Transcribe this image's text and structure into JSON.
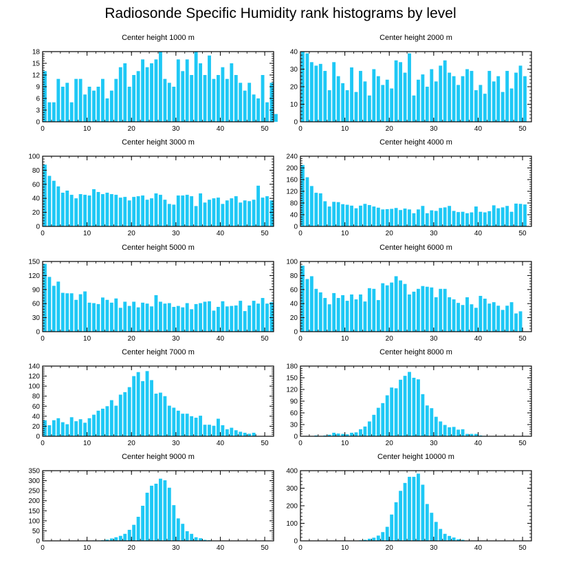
{
  "title": "Radiosonde Specific Humidity rank histograms by level",
  "bar_color": "#1ec8f5",
  "chart_data": [
    {
      "type": "bar",
      "title": "Center height 1000 m",
      "xlim": [
        0,
        52
      ],
      "ylim": [
        0,
        18
      ],
      "xticks": [
        0,
        10,
        20,
        30,
        40,
        50
      ],
      "yticks": [
        0,
        3,
        6,
        9,
        12,
        15,
        18
      ],
      "values": [
        13,
        5,
        5,
        11,
        9,
        10,
        5,
        11,
        11,
        7,
        9,
        8,
        9,
        11,
        6,
        8,
        11,
        14,
        15,
        9,
        12,
        13,
        16,
        14,
        15,
        16,
        18,
        11,
        10,
        9,
        16,
        13,
        16,
        12,
        18,
        15,
        12,
        17,
        11,
        12,
        14,
        11,
        15,
        12,
        10,
        8,
        10,
        7,
        6,
        12,
        5,
        10,
        2
      ]
    },
    {
      "type": "bar",
      "title": "Center height 2000 m",
      "xlim": [
        0,
        52
      ],
      "ylim": [
        0,
        40
      ],
      "xticks": [
        0,
        10,
        20,
        30,
        40,
        50
      ],
      "yticks": [
        0,
        10,
        20,
        30,
        40
      ],
      "values": [
        40,
        39,
        34,
        32,
        33,
        29,
        18,
        34,
        26,
        22,
        18,
        31,
        17,
        29,
        23,
        15,
        30,
        26,
        21,
        24,
        19,
        35,
        34,
        28,
        39,
        15,
        24,
        27,
        20,
        30,
        23,
        32,
        35,
        28,
        26,
        21,
        26,
        30,
        29,
        18,
        21,
        16,
        29,
        23,
        26,
        17,
        29,
        19,
        28,
        32,
        26
      ]
    },
    {
      "type": "bar",
      "title": "Center height 3000 m",
      "xlim": [
        0,
        52
      ],
      "ylim": [
        0,
        100
      ],
      "xticks": [
        0,
        10,
        20,
        30,
        40,
        50
      ],
      "yticks": [
        0,
        20,
        40,
        60,
        80,
        100
      ],
      "values": [
        88,
        72,
        65,
        57,
        48,
        51,
        45,
        40,
        46,
        45,
        44,
        53,
        49,
        46,
        48,
        46,
        45,
        41,
        42,
        37,
        42,
        43,
        44,
        38,
        40,
        47,
        45,
        38,
        32,
        31,
        44,
        44,
        45,
        43,
        29,
        47,
        34,
        38,
        40,
        41,
        32,
        37,
        40,
        43,
        34,
        37,
        36,
        38,
        58,
        41,
        43,
        37
      ]
    },
    {
      "type": "bar",
      "title": "Center height 4000 m",
      "xlim": [
        0,
        52
      ],
      "ylim": [
        0,
        240
      ],
      "xticks": [
        0,
        10,
        20,
        30,
        40,
        50
      ],
      "yticks": [
        0,
        40,
        80,
        120,
        160,
        200,
        240
      ],
      "values": [
        210,
        168,
        138,
        115,
        113,
        86,
        68,
        84,
        83,
        76,
        74,
        71,
        62,
        71,
        77,
        73,
        68,
        64,
        58,
        59,
        60,
        63,
        56,
        61,
        58,
        45,
        58,
        70,
        45,
        55,
        53,
        63,
        65,
        70,
        53,
        49,
        50,
        45,
        48,
        68,
        50,
        48,
        52,
        72,
        62,
        65,
        70,
        50,
        78,
        77,
        75
      ]
    },
    {
      "type": "bar",
      "title": "Center height 5000 m",
      "xlim": [
        0,
        52
      ],
      "ylim": [
        0,
        150
      ],
      "xticks": [
        0,
        10,
        20,
        30,
        40,
        50
      ],
      "yticks": [
        0,
        30,
        60,
        90,
        120,
        150
      ],
      "values": [
        145,
        117,
        98,
        107,
        83,
        82,
        82,
        68,
        80,
        86,
        62,
        61,
        59,
        73,
        68,
        62,
        71,
        51,
        64,
        55,
        64,
        52,
        62,
        60,
        54,
        78,
        64,
        60,
        61,
        53,
        55,
        52,
        61,
        48,
        59,
        61,
        64,
        65,
        45,
        53,
        65,
        54,
        55,
        56,
        66,
        44,
        56,
        66,
        60,
        72,
        60,
        63
      ]
    },
    {
      "type": "bar",
      "title": "Center height 6000 m",
      "xlim": [
        0,
        52
      ],
      "ylim": [
        0,
        100
      ],
      "xticks": [
        0,
        10,
        20,
        30,
        40,
        50
      ],
      "yticks": [
        0,
        20,
        40,
        60,
        80,
        100
      ],
      "values": [
        94,
        75,
        79,
        61,
        56,
        48,
        39,
        55,
        48,
        52,
        44,
        53,
        46,
        53,
        43,
        62,
        61,
        45,
        69,
        66,
        70,
        79,
        73,
        68,
        53,
        57,
        61,
        65,
        64,
        63,
        49,
        61,
        61,
        49,
        46,
        41,
        38,
        49,
        39,
        34,
        51,
        47,
        40,
        42,
        37,
        31,
        37,
        42,
        26,
        29
      ]
    },
    {
      "type": "bar",
      "title": "Center height 7000 m",
      "xlim": [
        0,
        52
      ],
      "ylim": [
        0,
        140
      ],
      "xticks": [
        0,
        10,
        20,
        30,
        40,
        50
      ],
      "yticks": [
        0,
        20,
        40,
        60,
        80,
        100,
        120,
        140
      ],
      "values": [
        32,
        22,
        32,
        36,
        28,
        24,
        38,
        30,
        34,
        27,
        36,
        43,
        51,
        55,
        60,
        72,
        61,
        83,
        88,
        98,
        120,
        128,
        110,
        130,
        112,
        85,
        87,
        80,
        61,
        57,
        51,
        45,
        45,
        40,
        37,
        41,
        23,
        23,
        21,
        35,
        22,
        14,
        17,
        12,
        9,
        7,
        5,
        7
      ]
    },
    {
      "type": "bar",
      "title": "Center height 8000 m",
      "xlim": [
        0,
        52
      ],
      "ylim": [
        0,
        180
      ],
      "xticks": [
        0,
        10,
        20,
        30,
        40,
        50
      ],
      "yticks": [
        0,
        30,
        60,
        90,
        120,
        150,
        180
      ],
      "values": [
        0,
        1,
        0,
        2,
        1,
        2,
        4,
        9,
        7,
        6,
        5,
        9,
        10,
        18,
        25,
        38,
        55,
        73,
        85,
        105,
        125,
        123,
        145,
        155,
        165,
        150,
        146,
        108,
        79,
        72,
        50,
        38,
        29,
        23,
        24,
        17,
        18,
        6,
        6,
        6,
        2,
        1
      ]
    },
    {
      "type": "bar",
      "title": "Center height 9000 m",
      "xlim": [
        0,
        52
      ],
      "ylim": [
        0,
        350
      ],
      "xticks": [
        0,
        10,
        20,
        30,
        40,
        50
      ],
      "yticks": [
        0,
        50,
        100,
        150,
        200,
        250,
        300,
        350
      ],
      "values": [
        0,
        0,
        0,
        0,
        0,
        0,
        0,
        1,
        1,
        1,
        1,
        2,
        2,
        3,
        6,
        12,
        18,
        25,
        35,
        55,
        80,
        120,
        175,
        240,
        275,
        285,
        310,
        302,
        265,
        178,
        112,
        85,
        48,
        35,
        18,
        13,
        5,
        3,
        1,
        1
      ]
    },
    {
      "type": "bar",
      "title": "Center height 10000 m",
      "xlim": [
        0,
        52
      ],
      "ylim": [
        0,
        400
      ],
      "xticks": [
        0,
        10,
        20,
        30,
        40,
        50
      ],
      "yticks": [
        0,
        100,
        200,
        300,
        400
      ],
      "values": [
        0,
        0,
        0,
        0,
        0,
        0,
        0,
        0,
        0,
        0,
        1,
        1,
        2,
        3,
        6,
        12,
        18,
        30,
        50,
        80,
        150,
        220,
        285,
        330,
        365,
        365,
        383,
        320,
        210,
        160,
        108,
        68,
        40,
        28,
        19,
        9,
        6,
        2,
        1
      ]
    }
  ]
}
